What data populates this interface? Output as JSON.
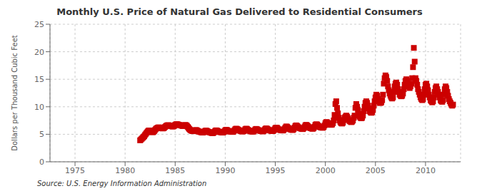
{
  "chart_data": {
    "type": "scatter",
    "title": "Monthly U.S. Price of Natural Gas Delivered to Residential Consumers",
    "y_label": "Dollars per Thousand Cubic Feet",
    "annotations": [
      "Source: U.S. Energy Information Administration"
    ],
    "color": "#cc0000",
    "marker": "square",
    "grid": true,
    "xlim": [
      1972.5,
      2013.5
    ],
    "ylim": [
      0,
      25
    ],
    "xticks": [
      1975,
      1980,
      1985,
      1990,
      1995,
      2000,
      2005,
      2010
    ],
    "yticks": [
      0,
      5,
      10,
      15,
      20,
      25
    ],
    "x": [
      1981.5,
      1981.583,
      1981.667,
      1981.75,
      1981.833,
      1981.917,
      1982.0,
      1982.083,
      1982.167,
      1982.25,
      1982.333,
      1982.417,
      1982.5,
      1982.583,
      1982.667,
      1982.75,
      1982.833,
      1982.917,
      1983.0,
      1983.083,
      1983.167,
      1983.25,
      1983.333,
      1983.417,
      1983.5,
      1983.583,
      1983.667,
      1983.75,
      1983.833,
      1983.917,
      1984.0,
      1984.083,
      1984.167,
      1984.25,
      1984.333,
      1984.417,
      1984.5,
      1984.583,
      1984.667,
      1984.75,
      1984.833,
      1984.917,
      1985.0,
      1985.083,
      1985.167,
      1985.25,
      1985.333,
      1985.417,
      1985.5,
      1985.583,
      1985.667,
      1985.75,
      1985.833,
      1985.917,
      1986.0,
      1986.083,
      1986.167,
      1986.25,
      1986.333,
      1986.417,
      1986.5,
      1986.583,
      1986.667,
      1986.75,
      1986.833,
      1986.917,
      1987.0,
      1987.083,
      1987.167,
      1987.25,
      1987.333,
      1987.417,
      1987.5,
      1987.583,
      1987.667,
      1987.75,
      1987.833,
      1987.917,
      1988.0,
      1988.083,
      1988.167,
      1988.25,
      1988.333,
      1988.417,
      1988.5,
      1988.583,
      1988.667,
      1988.75,
      1988.833,
      1988.917,
      1989.0,
      1989.083,
      1989.167,
      1989.25,
      1989.333,
      1989.417,
      1989.5,
      1989.583,
      1989.667,
      1989.75,
      1989.833,
      1989.917,
      1990.0,
      1990.083,
      1990.167,
      1990.25,
      1990.333,
      1990.417,
      1990.5,
      1990.583,
      1990.667,
      1990.75,
      1990.833,
      1990.917,
      1991.0,
      1991.083,
      1991.167,
      1991.25,
      1991.333,
      1991.417,
      1991.5,
      1991.583,
      1991.667,
      1991.75,
      1991.833,
      1991.917,
      1992.0,
      1992.083,
      1992.167,
      1992.25,
      1992.333,
      1992.417,
      1992.5,
      1992.583,
      1992.667,
      1992.75,
      1992.833,
      1992.917,
      1993.0,
      1993.083,
      1993.167,
      1993.25,
      1993.333,
      1993.417,
      1993.5,
      1993.583,
      1993.667,
      1993.75,
      1993.833,
      1993.917,
      1994.0,
      1994.083,
      1994.167,
      1994.25,
      1994.333,
      1994.417,
      1994.5,
      1994.583,
      1994.667,
      1994.75,
      1994.833,
      1994.917,
      1995.0,
      1995.083,
      1995.167,
      1995.25,
      1995.333,
      1995.417,
      1995.5,
      1995.583,
      1995.667,
      1995.75,
      1995.833,
      1995.917,
      1996.0,
      1996.083,
      1996.167,
      1996.25,
      1996.333,
      1996.417,
      1996.5,
      1996.583,
      1996.667,
      1996.75,
      1996.833,
      1996.917,
      1997.0,
      1997.083,
      1997.167,
      1997.25,
      1997.333,
      1997.417,
      1997.5,
      1997.583,
      1997.667,
      1997.75,
      1997.833,
      1997.917,
      1998.0,
      1998.083,
      1998.167,
      1998.25,
      1998.333,
      1998.417,
      1998.5,
      1998.583,
      1998.667,
      1998.75,
      1998.833,
      1998.917,
      1999.0,
      1999.083,
      1999.167,
      1999.25,
      1999.333,
      1999.417,
      1999.5,
      1999.583,
      1999.667,
      1999.75,
      1999.833,
      1999.917,
      2000.0,
      2000.083,
      2000.167,
      2000.25,
      2000.333,
      2000.417,
      2000.5,
      2000.583,
      2000.667,
      2000.75,
      2000.833,
      2000.917,
      2001.0,
      2001.083,
      2001.167,
      2001.25,
      2001.333,
      2001.417,
      2001.5,
      2001.583,
      2001.667,
      2001.75,
      2001.833,
      2001.917,
      2002.0,
      2002.083,
      2002.167,
      2002.25,
      2002.333,
      2002.417,
      2002.5,
      2002.583,
      2002.667,
      2002.75,
      2002.833,
      2002.917,
      2003.0,
      2003.083,
      2003.167,
      2003.25,
      2003.333,
      2003.417,
      2003.5,
      2003.583,
      2003.667,
      2003.75,
      2003.833,
      2003.917,
      2004.0,
      2004.083,
      2004.167,
      2004.25,
      2004.333,
      2004.417,
      2004.5,
      2004.583,
      2004.667,
      2004.75,
      2004.833,
      2004.917,
      2005.0,
      2005.083,
      2005.167,
      2005.25,
      2005.333,
      2005.417,
      2005.5,
      2005.583,
      2005.667,
      2005.75,
      2005.833,
      2005.917,
      2006.0,
      2006.083,
      2006.167,
      2006.25,
      2006.333,
      2006.417,
      2006.5,
      2006.583,
      2006.667,
      2006.75,
      2006.833,
      2006.917,
      2007.0,
      2007.083,
      2007.167,
      2007.25,
      2007.333,
      2007.417,
      2007.5,
      2007.583,
      2007.667,
      2007.75,
      2007.833,
      2007.917,
      2008.0,
      2008.083,
      2008.167,
      2008.25,
      2008.333,
      2008.417,
      2008.5,
      2008.583,
      2008.667,
      2008.75,
      2008.833,
      2008.917,
      2009.0,
      2009.083,
      2009.167,
      2009.25,
      2009.333,
      2009.417,
      2009.5,
      2009.583,
      2009.667,
      2009.75,
      2009.833,
      2009.917,
      2010.0,
      2010.083,
      2010.167,
      2010.25,
      2010.333,
      2010.417,
      2010.5,
      2010.583,
      2010.667,
      2010.75,
      2010.833,
      2010.917,
      2011.0,
      2011.083,
      2011.167,
      2011.25,
      2011.333,
      2011.417,
      2011.5,
      2011.583,
      2011.667,
      2011.75,
      2011.833,
      2011.917,
      2012.0,
      2012.083,
      2012.167,
      2012.25,
      2012.333,
      2012.417,
      2012.5,
      2012.583,
      2012.667,
      2012.75
    ],
    "values": [
      3.9,
      4.05,
      4.2,
      4.35,
      4.5,
      4.65,
      4.9,
      5.1,
      5.3,
      5.5,
      5.65,
      5.7,
      5.65,
      5.55,
      5.45,
      5.35,
      5.45,
      5.6,
      5.8,
      6.0,
      6.1,
      6.2,
      6.25,
      6.25,
      6.2,
      6.15,
      6.1,
      6.05,
      6.1,
      6.2,
      6.35,
      6.5,
      6.6,
      6.65,
      6.65,
      6.6,
      6.55,
      6.5,
      6.45,
      6.4,
      6.45,
      6.55,
      6.7,
      6.8,
      6.85,
      6.8,
      6.75,
      6.7,
      6.65,
      6.6,
      6.55,
      6.5,
      6.52,
      6.6,
      6.7,
      6.65,
      6.55,
      6.35,
      6.15,
      5.95,
      5.8,
      5.7,
      5.62,
      5.58,
      5.55,
      5.58,
      5.72,
      5.78,
      5.72,
      5.62,
      5.52,
      5.48,
      5.42,
      5.38,
      5.32,
      5.3,
      5.38,
      5.48,
      5.62,
      5.68,
      5.62,
      5.52,
      5.42,
      5.38,
      5.32,
      5.28,
      5.22,
      5.2,
      5.28,
      5.42,
      5.62,
      5.72,
      5.68,
      5.58,
      5.48,
      5.42,
      5.4,
      5.38,
      5.32,
      5.3,
      5.38,
      5.52,
      5.72,
      5.82,
      5.78,
      5.68,
      5.58,
      5.52,
      5.5,
      5.48,
      5.44,
      5.42,
      5.52,
      5.72,
      5.92,
      6.02,
      5.98,
      5.88,
      5.78,
      5.68,
      5.62,
      5.58,
      5.52,
      5.5,
      5.58,
      5.72,
      5.92,
      6.02,
      5.98,
      5.82,
      5.72,
      5.62,
      5.58,
      5.52,
      5.5,
      5.48,
      5.52,
      5.68,
      5.88,
      5.98,
      5.92,
      5.82,
      5.72,
      5.68,
      5.62,
      5.58,
      5.54,
      5.52,
      5.6,
      5.78,
      5.98,
      6.08,
      6.02,
      5.9,
      5.8,
      5.72,
      5.68,
      5.62,
      5.6,
      5.58,
      5.68,
      5.88,
      6.12,
      6.22,
      6.18,
      6.02,
      5.9,
      5.82,
      5.78,
      5.72,
      5.7,
      5.68,
      5.78,
      5.98,
      6.22,
      6.42,
      6.38,
      6.22,
      6.08,
      5.98,
      5.9,
      5.84,
      5.8,
      5.78,
      5.92,
      6.22,
      6.52,
      6.62,
      6.52,
      6.38,
      6.22,
      6.12,
      6.08,
      6.02,
      5.98,
      5.94,
      6.08,
      6.32,
      6.62,
      6.72,
      6.62,
      6.48,
      6.32,
      6.2,
      6.12,
      6.08,
      6.02,
      6.0,
      6.12,
      6.38,
      6.72,
      6.82,
      6.78,
      6.62,
      6.48,
      6.34,
      6.28,
      6.22,
      6.2,
      6.18,
      6.32,
      6.62,
      7.02,
      7.22,
      7.18,
      7.02,
      6.88,
      6.78,
      6.72,
      6.72,
      6.78,
      7.02,
      7.52,
      8.52,
      10.5,
      11.0,
      9.8,
      8.8,
      8.0,
      7.5,
      7.2,
      7.0,
      6.95,
      7.1,
      7.6,
      8.0,
      8.2,
      8.4,
      8.2,
      7.9,
      7.6,
      7.4,
      7.3,
      7.2,
      7.3,
      7.5,
      8.0,
      8.4,
      9.8,
      10.5,
      10.0,
      9.4,
      8.7,
      8.2,
      8.0,
      7.9,
      8.0,
      8.4,
      9.2,
      10.0,
      10.7,
      11.0,
      10.7,
      10.2,
      9.7,
      9.2,
      9.0,
      8.9,
      9.0,
      9.4,
      10.2,
      11.0,
      11.7,
      12.2,
      12.0,
      11.4,
      11.0,
      10.7,
      10.7,
      10.8,
      11.2,
      12.2,
      14.2,
      15.2,
      15.7,
      15.4,
      14.7,
      13.7,
      13.0,
      12.4,
      12.0,
      11.7,
      11.5,
      11.7,
      12.7,
      13.7,
      14.2,
      14.4,
      14.0,
      13.2,
      12.7,
      12.2,
      12.0,
      11.9,
      12.0,
      12.4,
      13.2,
      14.0,
      14.7,
      15.0,
      14.7,
      14.2,
      13.7,
      13.4,
      13.7,
      14.2,
      15.2,
      17.2,
      20.7,
      18.2,
      15.2,
      14.7,
      14.0,
      13.2,
      12.7,
      12.2,
      11.7,
      11.4,
      11.2,
      11.4,
      12.2,
      13.2,
      14.0,
      14.2,
      13.7,
      13.0,
      12.2,
      11.7,
      11.2,
      11.0,
      10.8,
      11.0,
      11.7,
      12.7,
      13.4,
      13.7,
      13.2,
      12.7,
      12.2,
      11.7,
      11.2,
      11.0,
      10.9,
      11.2,
      12.2,
      13.2,
      13.7,
      13.4,
      12.7,
      12.0,
      11.4,
      11.0,
      10.7,
      10.4,
      10.2,
      10.4
    ]
  }
}
